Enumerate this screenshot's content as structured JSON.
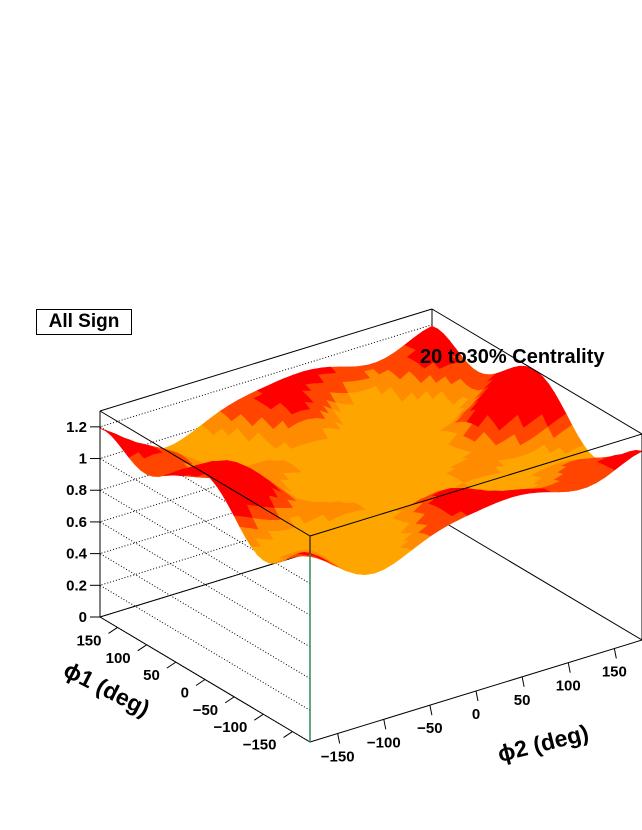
{
  "chart_data": {
    "type": "surface",
    "title": "20 to30% Centrality",
    "label": "All Sign",
    "xlabel": "ϕ2 (deg)",
    "ylabel": "ϕ1 (deg)",
    "zlim": [
      0,
      1.3
    ],
    "xlim": [
      -180,
      180
    ],
    "ylim": [
      -180,
      180
    ],
    "z_ticks": [
      "0",
      "0.2",
      "0.4",
      "0.6",
      "0.8",
      "1",
      "1.2"
    ],
    "x_ticks": [
      "−150",
      "−100",
      "−50",
      "0",
      "50",
      "100",
      "150"
    ],
    "y_ticks": [
      "−150",
      "−100",
      "−50",
      "0",
      "50",
      "100",
      "150"
    ],
    "grid_z": true,
    "surface": {
      "baseline": 0.95,
      "peaks": [
        {
          "phi1": 180,
          "phi2": 0,
          "z": 1.22
        },
        {
          "phi1": -180,
          "phi2": -180,
          "z": 1.15
        },
        {
          "phi1": 0,
          "phi2": -180,
          "z": 1.18
        },
        {
          "phi1": 0,
          "phi2": 180,
          "z": 1.12
        },
        {
          "phi1": 180,
          "phi2": 180,
          "z": 1.1
        }
      ],
      "troughs": [
        {
          "phi1": -180,
          "phi2": -100,
          "z": 0.78
        },
        {
          "phi1": -100,
          "phi2": -180,
          "z": 0.8
        },
        {
          "phi1": 90,
          "phi2": 100,
          "z": 0.82
        }
      ]
    },
    "palette": [
      "#FFA500",
      "#FF8C00",
      "#FF4500",
      "#FF0000"
    ]
  }
}
